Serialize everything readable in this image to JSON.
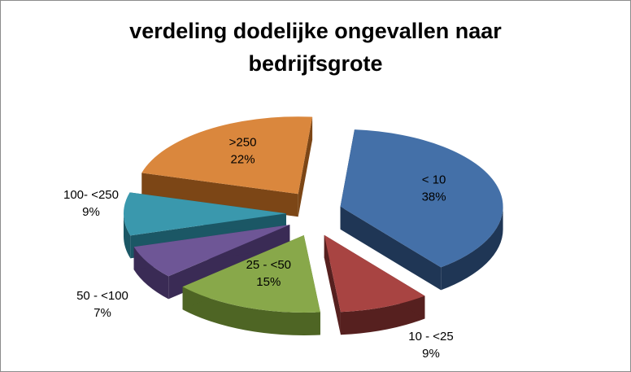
{
  "chart_data": {
    "type": "pie",
    "variant": "3d-exploded",
    "title_line1": "verdeling dodelijke ongevallen naar",
    "title_line2": "bedrijfsgrote",
    "slices": [
      {
        "label": "< 10",
        "value": 38,
        "pct_label": "38%",
        "color": "#4470A8",
        "side_color": "#1F3655",
        "label_inside": true
      },
      {
        "label": "10 - <25",
        "value": 9,
        "pct_label": "9%",
        "color": "#A84442",
        "side_color": "#56201F",
        "label_inside": false
      },
      {
        "label": "25 - <50",
        "value": 15,
        "pct_label": "15%",
        "color": "#88A84A",
        "side_color": "#4E6524",
        "label_inside": true
      },
      {
        "label": "50 - <100",
        "value": 7,
        "pct_label": "7%",
        "color": "#6E5696",
        "side_color": "#3A2B55",
        "label_inside": false
      },
      {
        "label": "100- <250",
        "value": 9,
        "pct_label": "9%",
        "color": "#3A98AD",
        "side_color": "#1B5765",
        "label_inside": false
      },
      {
        "label": ">250",
        "value": 22,
        "pct_label": "22%",
        "color": "#DA873D",
        "side_color": "#7C4616",
        "label_inside": true
      }
    ]
  }
}
